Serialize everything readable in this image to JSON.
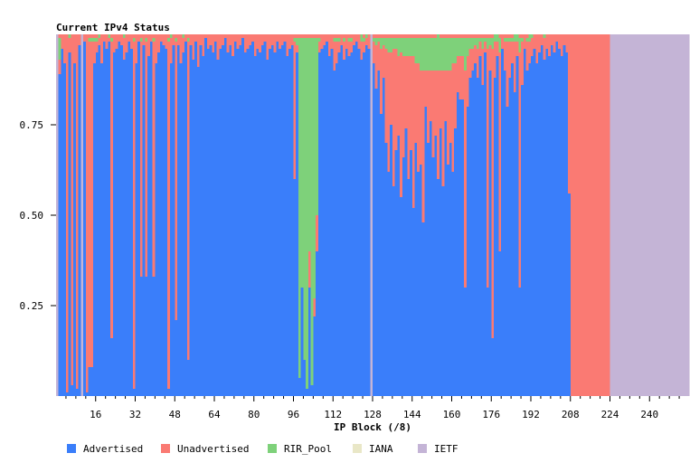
{
  "chart_data": {
    "type": "bar",
    "stacked": true,
    "title": "Current IPv4 Status",
    "xlabel": "IP Block (/8)",
    "ylabel": "",
    "xlim": [
      0,
      256
    ],
    "ylim": [
      0,
      1
    ],
    "x_ticks": [
      "16",
      "32",
      "48",
      "64",
      "80",
      "96",
      "112",
      "128",
      "144",
      "160",
      "176",
      "192",
      "208",
      "224",
      "240"
    ],
    "y_ticks": [
      "0.25",
      "0.50",
      "0.75"
    ],
    "legend_position": "bottom",
    "categories": [
      "Advertised",
      "Unadvertised",
      "RIR_Pool",
      "IANA",
      "IETF"
    ],
    "colors": {
      "Advertised": "#3a7efa",
      "Unadvertised": "#fa7a73",
      "RIR_Pool": "#7ed17a",
      "IANA": "#e9e7c7",
      "IETF": "#c4b4d6"
    },
    "notes_ietf_blocks": [
      0,
      10,
      127,
      224
    ],
    "advertised": [
      0,
      0.89,
      0.96,
      0.92,
      0.01,
      0.95,
      0.03,
      0.92,
      0.02,
      0.97,
      0.02,
      0.98,
      0.01,
      0.08,
      0.08,
      0.92,
      0.95,
      0.97,
      0.92,
      0.98,
      0.96,
      0.98,
      0.16,
      0.95,
      0.96,
      0.98,
      0.97,
      0.93,
      0.95,
      0.98,
      0.96,
      0.02,
      0.92,
      0.98,
      0.33,
      0.97,
      0.33,
      0.94,
      0.98,
      0.33,
      0.92,
      0.95,
      0.98,
      0.97,
      0.96,
      0.02,
      0.92,
      0.97,
      0.21,
      0.97,
      0.92,
      0.95,
      0.98,
      0.1,
      0.97,
      0.93,
      0.98,
      0.91,
      0.97,
      0.94,
      0.99,
      0.96,
      0.97,
      0.95,
      0.98,
      0.93,
      0.96,
      0.97,
      0.99,
      0.95,
      0.97,
      0.94,
      0.98,
      0.96,
      0.97,
      0.99,
      0.95,
      0.96,
      0.97,
      0.98,
      0.94,
      0.96,
      0.95,
      0.97,
      0.98,
      0.93,
      0.96,
      0.97,
      0.95,
      0.98,
      0.96,
      0.97,
      0.98,
      0.94,
      0.96,
      0.97,
      0.6,
      0.95,
      0.05,
      0.3,
      0.1,
      0.02,
      0.3,
      0.03,
      0.22,
      0.4,
      0.95,
      0.96,
      0.97,
      0.98,
      0.94,
      0.96,
      0.9,
      0.92,
      0.95,
      0.97,
      0.93,
      0.96,
      0.94,
      0.95,
      0.97,
      0.98,
      0.96,
      0.93,
      0.95,
      0.97,
      0.96,
      0,
      0.92,
      0.85,
      0.9,
      0.78,
      0.88,
      0.7,
      0.62,
      0.75,
      0.58,
      0.68,
      0.72,
      0.55,
      0.66,
      0.74,
      0.6,
      0.68,
      0.52,
      0.7,
      0.62,
      0.64,
      0.48,
      0.8,
      0.7,
      0.76,
      0.66,
      0.72,
      0.6,
      0.74,
      0.58,
      0.76,
      0.64,
      0.7,
      0.62,
      0.74,
      0.84,
      0.82,
      0.82,
      0.3,
      0.8,
      0.88,
      0.9,
      0.92,
      0.88,
      0.94,
      0.86,
      0.95,
      0.3,
      0.9,
      0.16,
      0.88,
      0.94,
      0.4,
      0.96,
      0.9,
      0.8,
      0.88,
      0.92,
      0.84,
      0.94,
      0.3,
      0.86,
      0.96,
      0.9,
      0.92,
      0.94,
      0.96,
      0.92,
      0.95,
      0.97,
      0.93,
      0.96,
      0.94,
      0.97,
      0.95,
      0.98,
      0.96,
      0.94,
      0.97,
      0.95,
      0.56
    ],
    "unadvertised": [
      0,
      0.04,
      0.03,
      0.07,
      0.98,
      0.04,
      0.96,
      0.07,
      0.97,
      0.02,
      0.97,
      0.01,
      0.98,
      0.9,
      0.9,
      0.06,
      0.03,
      0.02,
      0.07,
      0.01,
      0.03,
      0.01,
      0.82,
      0.04,
      0.03,
      0.01,
      0.02,
      0.06,
      0.04,
      0.01,
      0.03,
      0.96,
      0.07,
      0.01,
      0.65,
      0.02,
      0.65,
      0.05,
      0.01,
      0.65,
      0.07,
      0.04,
      0.01,
      0.02,
      0.03,
      0.96,
      0.07,
      0.02,
      0.77,
      0.02,
      0.07,
      0.04,
      0.01,
      0.88,
      0.02,
      0.06,
      0.01,
      0.08,
      0.02,
      0.05,
      0.0,
      0.03,
      0.02,
      0.04,
      0.01,
      0.06,
      0.03,
      0.02,
      0.0,
      0.04,
      0.02,
      0.05,
      0.01,
      0.03,
      0.02,
      0.0,
      0.04,
      0.03,
      0.02,
      0.01,
      0.05,
      0.03,
      0.04,
      0.02,
      0.01,
      0.06,
      0.03,
      0.02,
      0.04,
      0.01,
      0.03,
      0.02,
      0.01,
      0.05,
      0.03,
      0.02,
      0.38,
      0.02,
      0.0,
      0.0,
      0.0,
      0.0,
      0.1,
      0.0,
      0.05,
      0.1,
      0.03,
      0.03,
      0.02,
      0.01,
      0.05,
      0.03,
      0.08,
      0.06,
      0.03,
      0.02,
      0.05,
      0.03,
      0.04,
      0.03,
      0.02,
      0.01,
      0.03,
      0.05,
      0.03,
      0.02,
      0.03,
      0,
      0.06,
      0.12,
      0.08,
      0.18,
      0.09,
      0.26,
      0.33,
      0.2,
      0.38,
      0.28,
      0.22,
      0.4,
      0.28,
      0.2,
      0.34,
      0.26,
      0.42,
      0.22,
      0.3,
      0.26,
      0.42,
      0.1,
      0.2,
      0.14,
      0.24,
      0.18,
      0.3,
      0.16,
      0.32,
      0.14,
      0.26,
      0.2,
      0.3,
      0.18,
      0.1,
      0.12,
      0.12,
      0.6,
      0.14,
      0.08,
      0.06,
      0.05,
      0.08,
      0.04,
      0.1,
      0.03,
      0.66,
      0.07,
      0.8,
      0.1,
      0.04,
      0.55,
      0.03,
      0.08,
      0.18,
      0.1,
      0.06,
      0.14,
      0.04,
      0.65,
      0.12,
      0.03,
      0.08,
      0.06,
      0.05,
      0.03,
      0.07,
      0.04,
      0.02,
      0.06,
      0.03,
      0.05,
      0.02,
      0.04,
      0.01,
      0.03,
      0.05,
      0.02,
      0.04,
      0.43
    ],
    "rir_pool": [
      0,
      0.06,
      0.0,
      0.0,
      0.0,
      0.0,
      0.0,
      0.0,
      0.0,
      0.0,
      0.0,
      0.0,
      0.0,
      0.01,
      0.01,
      0.01,
      0.01,
      0.0,
      0.0,
      0.0,
      0.0,
      0.0,
      0.01,
      0.0,
      0.0,
      0.0,
      0.0,
      0.0,
      0.0,
      0.0,
      0.0,
      0.01,
      0.0,
      0.0,
      0.01,
      0.0,
      0.01,
      0.0,
      0.0,
      0.01,
      0.0,
      0.0,
      0.0,
      0.0,
      0.0,
      0.01,
      0.0,
      0.0,
      0.01,
      0.0,
      0.0,
      0.0,
      0.0,
      0.01,
      0.0,
      0.0,
      0.0,
      0.0,
      0.0,
      0.0,
      0.0,
      0.0,
      0.0,
      0.0,
      0.0,
      0.0,
      0.0,
      0.0,
      0.0,
      0.0,
      0.0,
      0.0,
      0.0,
      0.0,
      0.0,
      0.0,
      0.0,
      0.0,
      0.0,
      0.0,
      0.0,
      0.0,
      0.0,
      0.0,
      0.0,
      0.0,
      0.0,
      0.0,
      0.0,
      0.0,
      0.0,
      0.0,
      0.0,
      0.0,
      0.0,
      0.0,
      0.01,
      0.02,
      0.94,
      0.69,
      0.89,
      0.97,
      0.59,
      0.96,
      0.72,
      0.49,
      0.01,
      0.0,
      0.0,
      0.0,
      0.0,
      0.0,
      0.01,
      0.01,
      0.01,
      0.0,
      0.01,
      0.0,
      0.01,
      0.01,
      0.0,
      0.0,
      0.0,
      0.01,
      0.01,
      0.0,
      0.0,
      0,
      0.01,
      0.02,
      0.01,
      0.03,
      0.02,
      0.03,
      0.04,
      0.04,
      0.03,
      0.03,
      0.05,
      0.04,
      0.05,
      0.05,
      0.05,
      0.05,
      0.05,
      0.07,
      0.07,
      0.09,
      0.09,
      0.09,
      0.09,
      0.09,
      0.09,
      0.09,
      0.09,
      0.09,
      0.09,
      0.09,
      0.09,
      0.09,
      0.07,
      0.07,
      0.05,
      0.05,
      0.05,
      0.09,
      0.05,
      0.03,
      0.03,
      0.02,
      0.03,
      0.01,
      0.03,
      0.01,
      0.03,
      0.02,
      0.03,
      0.01,
      0.01,
      0.04,
      0.0,
      0.01,
      0.01,
      0.01,
      0.01,
      0.01,
      0.01,
      0.04,
      0.01,
      0.0,
      0.01,
      0.01,
      0.01,
      0.0,
      0.0,
      0.0,
      0.0,
      0.0,
      0.0,
      0.0,
      0.0,
      0.0,
      0.0,
      0.0,
      0.0,
      0.0,
      0.0,
      0.0
    ],
    "extra_green_blocks": [
      5,
      17,
      21,
      27,
      46,
      51,
      99,
      100,
      101,
      102,
      103,
      104,
      105,
      123,
      125,
      154,
      177,
      178,
      185,
      186,
      191,
      197,
      224
    ]
  },
  "legend": {
    "advertised": "Advertised",
    "unadvertised": "Unadvertised",
    "rir_pool": "RIR_Pool",
    "iana": "IANA",
    "ietf": "IETF"
  }
}
